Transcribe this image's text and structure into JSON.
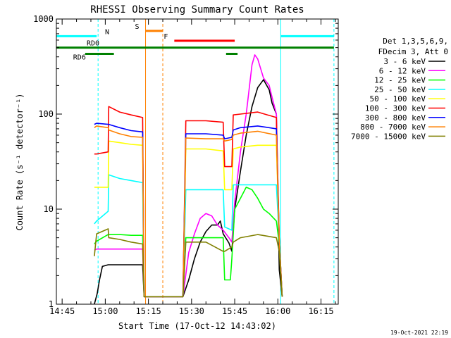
{
  "chart_data": {
    "type": "line",
    "title": "RHESSI Observing Summary Count Rates",
    "xlabel": "Start Time (17-Oct-12 14:43:02)",
    "ylabel": "Count Rate (s⁻¹ detector⁻¹)",
    "yscale": "log",
    "ylim": [
      1,
      1000
    ],
    "xlim_min": [
      0,
      98
    ],
    "x_ticks": [
      {
        "t": 2,
        "label": "14:45"
      },
      {
        "t": 17,
        "label": "15:00"
      },
      {
        "t": 32,
        "label": "15:15"
      },
      {
        "t": 47,
        "label": "15:30"
      },
      {
        "t": 62,
        "label": "15:45"
      },
      {
        "t": 77,
        "label": "16:00"
      },
      {
        "t": 92,
        "label": "16:15"
      }
    ],
    "y_ticks": [
      {
        "v": 1,
        "label": "1"
      },
      {
        "v": 10,
        "label": "10"
      },
      {
        "v": 100,
        "label": "100"
      },
      {
        "v": 1000,
        "label": "1000"
      }
    ],
    "legend_header": [
      "Det 1,3,5,6,9,",
      "FDecim 3, Att 0"
    ],
    "legend_position": "right",
    "series": [
      {
        "name": "3 - 6 keV",
        "color": "#000000",
        "points": [
          [
            13.2,
            0.8
          ],
          [
            14.2,
            1.3
          ],
          [
            15.0,
            1.8
          ],
          [
            16.0,
            2.5
          ],
          [
            18.0,
            2.6
          ],
          [
            22.0,
            2.6
          ],
          [
            26.0,
            2.6
          ],
          [
            30.0,
            2.6
          ],
          [
            30.5,
            1.2
          ],
          [
            44.0,
            1.2
          ],
          [
            46.0,
            1.8
          ],
          [
            48.0,
            3.0
          ],
          [
            50.0,
            4.5
          ],
          [
            52.0,
            5.8
          ],
          [
            54.0,
            6.8
          ],
          [
            56.0,
            6.8
          ],
          [
            57.0,
            7.5
          ],
          [
            58.0,
            5.5
          ],
          [
            60.0,
            4.4
          ],
          [
            61.0,
            3.6
          ],
          [
            62.0,
            10
          ],
          [
            64.0,
            25
          ],
          [
            66.0,
            60
          ],
          [
            68.0,
            120
          ],
          [
            70.0,
            190
          ],
          [
            72.0,
            230
          ],
          [
            74.0,
            180
          ],
          [
            75.0,
            130
          ],
          [
            76.5,
            100
          ],
          [
            77.5,
            2.3
          ],
          [
            78.5,
            1.2
          ]
        ]
      },
      {
        "name": "6 - 12 keV",
        "color": "#ff00ff",
        "points": [
          [
            13.2,
            3.7
          ],
          [
            14.0,
            3.8
          ],
          [
            18.0,
            3.8
          ],
          [
            22.0,
            3.8
          ],
          [
            26.0,
            3.8
          ],
          [
            30.0,
            3.8
          ],
          [
            30.5,
            1.2
          ],
          [
            44.0,
            1.2
          ],
          [
            46.0,
            3.5
          ],
          [
            48.0,
            5.5
          ],
          [
            50.0,
            8.0
          ],
          [
            52.0,
            9.0
          ],
          [
            54.0,
            8.5
          ],
          [
            56.0,
            6.8
          ],
          [
            58.0,
            6.0
          ],
          [
            60.0,
            5.0
          ],
          [
            61.0,
            4.5
          ],
          [
            62.0,
            12
          ],
          [
            64.0,
            40
          ],
          [
            66.0,
            100
          ],
          [
            68.0,
            330
          ],
          [
            69.0,
            420
          ],
          [
            70.0,
            380
          ],
          [
            72.0,
            240
          ],
          [
            74.0,
            200
          ],
          [
            75.0,
            150
          ],
          [
            76.5,
            100
          ],
          [
            77.5,
            4.0
          ],
          [
            78.5,
            1.2
          ]
        ]
      },
      {
        "name": "12 - 25 keV",
        "color": "#00ff00",
        "points": [
          [
            13.2,
            4.3
          ],
          [
            14.0,
            4.6
          ],
          [
            18.0,
            5.4
          ],
          [
            22.0,
            5.4
          ],
          [
            26.0,
            5.3
          ],
          [
            30.0,
            5.3
          ],
          [
            30.5,
            1.2
          ],
          [
            44.0,
            1.2
          ],
          [
            45.0,
            5.0
          ],
          [
            52.0,
            5.0
          ],
          [
            56.0,
            5.0
          ],
          [
            58.0,
            5.0
          ],
          [
            58.5,
            1.8
          ],
          [
            60.5,
            1.8
          ],
          [
            61.0,
            3.0
          ],
          [
            62.0,
            10
          ],
          [
            64.0,
            13
          ],
          [
            66.0,
            17
          ],
          [
            68.0,
            16
          ],
          [
            70.0,
            13
          ],
          [
            72.0,
            10
          ],
          [
            74.0,
            9.0
          ],
          [
            76.5,
            7.5
          ],
          [
            77.5,
            4.3
          ],
          [
            78.5,
            1.2
          ]
        ]
      },
      {
        "name": "25 - 50 keV",
        "color": "#00ffff",
        "points": [
          [
            13.2,
            7.0
          ],
          [
            14.0,
            7.5
          ],
          [
            18.0,
            9.5
          ],
          [
            18.2,
            23
          ],
          [
            22.0,
            21
          ],
          [
            26.0,
            20
          ],
          [
            30.0,
            19
          ],
          [
            30.5,
            1.2
          ],
          [
            44.0,
            1.2
          ],
          [
            45.0,
            16
          ],
          [
            52.0,
            16
          ],
          [
            58.0,
            16
          ],
          [
            58.5,
            6.5
          ],
          [
            61.0,
            6.0
          ],
          [
            61.5,
            18
          ],
          [
            64.0,
            18
          ],
          [
            70.0,
            18
          ],
          [
            76.5,
            18
          ],
          [
            77.5,
            4.8
          ],
          [
            78.5,
            1.2
          ]
        ]
      },
      {
        "name": "50 - 100 keV",
        "color": "#ffff00",
        "points": [
          [
            13.2,
            17
          ],
          [
            14.0,
            17
          ],
          [
            18.0,
            17
          ],
          [
            18.2,
            52
          ],
          [
            22.0,
            50
          ],
          [
            26.0,
            48
          ],
          [
            30.0,
            47
          ],
          [
            30.5,
            1.2
          ],
          [
            44.0,
            1.2
          ],
          [
            45.0,
            43
          ],
          [
            52.0,
            43
          ],
          [
            58.0,
            41
          ],
          [
            58.5,
            16
          ],
          [
            61.0,
            16
          ],
          [
            61.5,
            43
          ],
          [
            64.0,
            45
          ],
          [
            70.0,
            47
          ],
          [
            76.5,
            47
          ],
          [
            77.5,
            4.8
          ],
          [
            78.5,
            1.2
          ]
        ]
      },
      {
        "name": "100 - 300 keV",
        "color": "#ff0000",
        "points": [
          [
            13.2,
            38
          ],
          [
            14.0,
            38
          ],
          [
            18.0,
            40
          ],
          [
            18.2,
            120
          ],
          [
            22.0,
            105
          ],
          [
            26.0,
            98
          ],
          [
            30.0,
            92
          ],
          [
            30.5,
            1.2
          ],
          [
            44.0,
            1.2
          ],
          [
            45.0,
            85
          ],
          [
            52.0,
            85
          ],
          [
            58.0,
            82
          ],
          [
            58.5,
            28
          ],
          [
            61.0,
            28
          ],
          [
            61.5,
            98
          ],
          [
            64.0,
            100
          ],
          [
            70.0,
            105
          ],
          [
            76.5,
            92
          ],
          [
            77.5,
            4.8
          ],
          [
            78.5,
            1.2
          ]
        ]
      },
      {
        "name": "300 - 800 keV",
        "color": "#0000ff",
        "points": [
          [
            13.2,
            78
          ],
          [
            14.0,
            80
          ],
          [
            18.0,
            78
          ],
          [
            18.2,
            78
          ],
          [
            22.0,
            72
          ],
          [
            26.0,
            67
          ],
          [
            30.0,
            65
          ],
          [
            30.5,
            1.2
          ],
          [
            44.0,
            1.2
          ],
          [
            45.0,
            62
          ],
          [
            52.0,
            62
          ],
          [
            58.0,
            60
          ],
          [
            58.5,
            55
          ],
          [
            61.0,
            57
          ],
          [
            61.5,
            68
          ],
          [
            64.0,
            72
          ],
          [
            70.0,
            75
          ],
          [
            76.5,
            70
          ],
          [
            77.5,
            4.8
          ],
          [
            78.5,
            1.2
          ]
        ]
      },
      {
        "name": "800 - 7000 keV",
        "color": "#ff8000",
        "points": [
          [
            13.2,
            72
          ],
          [
            14.0,
            75
          ],
          [
            18.0,
            72
          ],
          [
            18.2,
            68
          ],
          [
            22.0,
            62
          ],
          [
            26.0,
            58
          ],
          [
            30.0,
            57
          ],
          [
            30.5,
            1.2
          ],
          [
            44.0,
            1.2
          ],
          [
            45.0,
            56
          ],
          [
            52.0,
            55
          ],
          [
            58.0,
            55
          ],
          [
            58.5,
            52
          ],
          [
            61.0,
            54
          ],
          [
            61.5,
            60
          ],
          [
            64.0,
            63
          ],
          [
            70.0,
            66
          ],
          [
            76.5,
            60
          ],
          [
            77.5,
            4.8
          ],
          [
            78.5,
            1.2
          ]
        ]
      },
      {
        "name": "7000 - 15000 keV",
        "color": "#808000",
        "points": [
          [
            13.2,
            3.2
          ],
          [
            14.0,
            5.5
          ],
          [
            18.0,
            6.2
          ],
          [
            18.2,
            5.0
          ],
          [
            22.0,
            4.8
          ],
          [
            26.0,
            4.5
          ],
          [
            30.0,
            4.3
          ],
          [
            30.5,
            1.2
          ],
          [
            44.0,
            1.2
          ],
          [
            45.0,
            4.5
          ],
          [
            52.0,
            4.5
          ],
          [
            58.0,
            3.6
          ],
          [
            58.5,
            3.6
          ],
          [
            61.0,
            4.0
          ],
          [
            61.5,
            4.5
          ],
          [
            64.0,
            5.0
          ],
          [
            70.0,
            5.4
          ],
          [
            76.5,
            5.0
          ],
          [
            77.5,
            3.6
          ],
          [
            78.5,
            1.2
          ]
        ]
      }
    ],
    "bars": [
      {
        "label": "N",
        "color": "#00ffff",
        "t0": 0.0,
        "t1": 14.0,
        "level": 660
      },
      {
        "label": "",
        "color": "#00ffff",
        "t0": 78.0,
        "t1": 96.5,
        "level": 660
      },
      {
        "label": "S",
        "color": "#ff8000",
        "t0": 31.0,
        "t1": 37.0,
        "level": 750
      },
      {
        "label": "F",
        "color": "#ff0000",
        "t0": 41.0,
        "t1": 62.0,
        "level": 590
      },
      {
        "label": "RD0",
        "color": "#008000",
        "t0": 0.0,
        "t1": 96.5,
        "level": 500
      },
      {
        "label": "",
        "color": "#008000",
        "t0": 59.0,
        "t1": 63.0,
        "level": 430
      },
      {
        "label": "RD6",
        "color": "#008000",
        "t0": 10.0,
        "t1": 20.0,
        "level": 430
      }
    ],
    "vlines": [
      {
        "t": 0.0,
        "color": "#00ffff",
        "dash": false
      },
      {
        "t": 14.5,
        "color": "#00ffff",
        "dash": true
      },
      {
        "t": 31.0,
        "color": "#ff8000",
        "dash": false
      },
      {
        "t": 37.0,
        "color": "#ff8000",
        "dash": true
      },
      {
        "t": 78.0,
        "color": "#00ffff",
        "dash": false
      },
      {
        "t": 96.5,
        "color": "#00ffff",
        "dash": true
      }
    ],
    "footer_date": "19-Oct-2021 22:19"
  }
}
